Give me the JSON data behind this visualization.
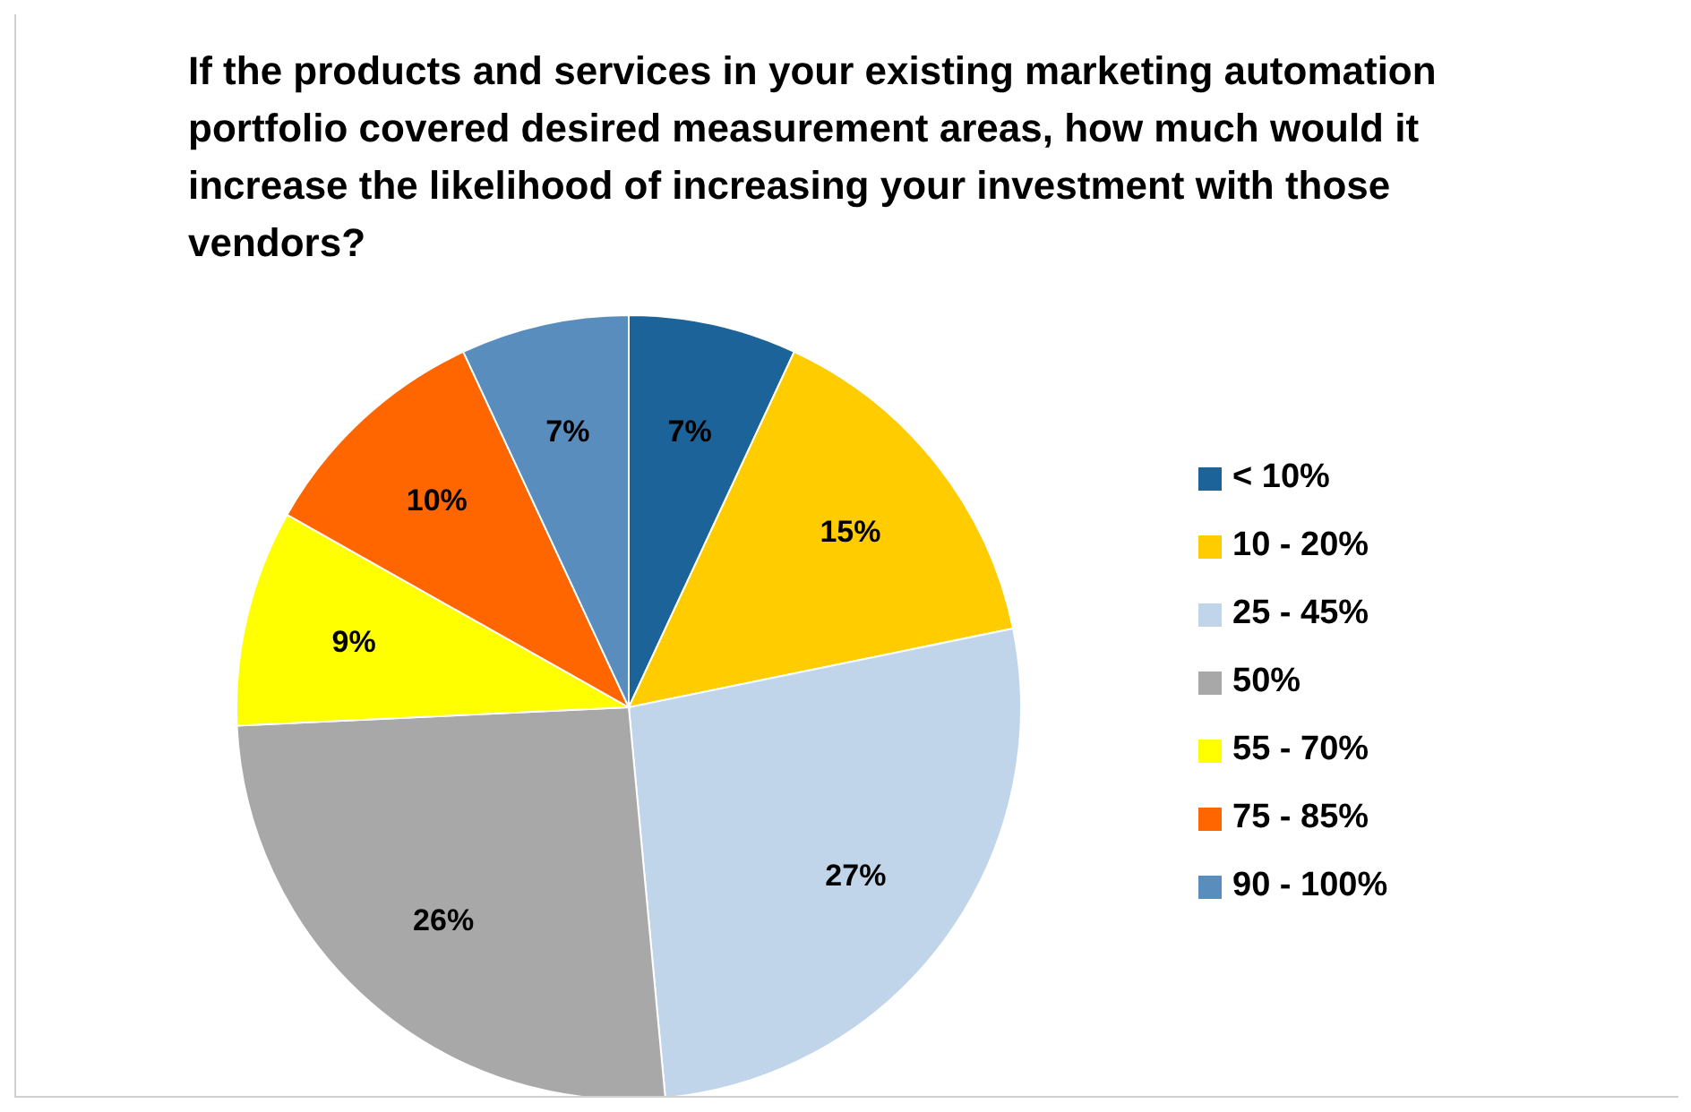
{
  "chart_data": {
    "type": "pie",
    "title": "If the products and services in your existing marketing automation portfolio covered desired measurement areas, how much would it increase the likelihood of increasing your investment with those vendors?",
    "categories": [
      "< 10%",
      "10 - 20%",
      "25 - 45%",
      "50%",
      "55 - 70%",
      "75 - 85%",
      "90 - 100%"
    ],
    "values": [
      7,
      15,
      27,
      26,
      9,
      10,
      7
    ],
    "value_labels": [
      "7%",
      "15%",
      "27%",
      "26%",
      "9%",
      "10%",
      "7%"
    ],
    "colors": [
      "#1b6399",
      "#ffcc00",
      "#c0d5ea",
      "#a9a8a8",
      "#ffff00",
      "#ff6600",
      "#588dbd"
    ],
    "legend": "right"
  }
}
